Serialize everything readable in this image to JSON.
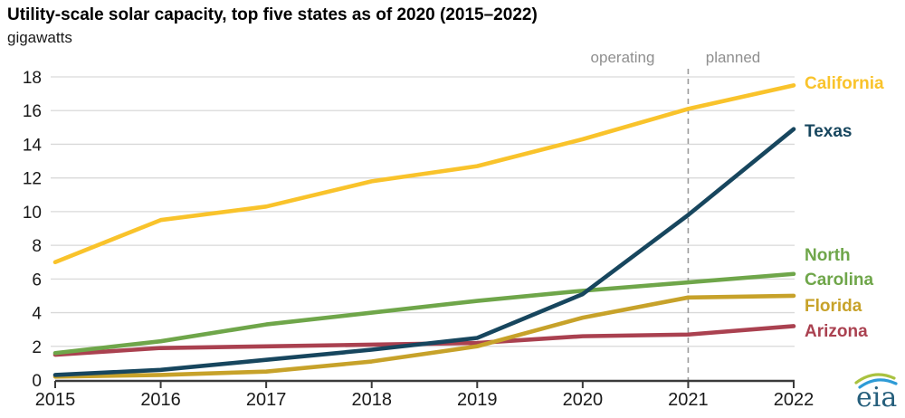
{
  "title": "Utility-scale solar capacity, top five states as of 2020 (2015–2022)",
  "subtitle": "gigawatts",
  "annotations": {
    "operating": "operating",
    "planned": "planned"
  },
  "logo_text": "eia",
  "colors": {
    "gridline": "#d9d9d9",
    "axis": "#3a3a3a",
    "tick_label": "#1a1a1a",
    "annotation_gray": "#8f8f8f",
    "divider_gray": "#9b9b9b",
    "logo_blue": "#265f7c",
    "logo_swoosh_green": "#a9c23f",
    "logo_swoosh_blue": "#2e9bd6"
  },
  "chart_data": {
    "type": "line",
    "title": "Utility-scale solar capacity, top five states as of 2020 (2015–2022)",
    "ylabel": "gigawatts",
    "x": [
      2015,
      2016,
      2017,
      2018,
      2019,
      2020,
      2021,
      2022
    ],
    "x_tick_labels": [
      "2015",
      "2016",
      "2017",
      "2018",
      "2019",
      "2020",
      "2021",
      "2022"
    ],
    "y_ticks": [
      0,
      2,
      4,
      6,
      8,
      10,
      12,
      14,
      16,
      18
    ],
    "ylim": [
      0,
      18
    ],
    "grid": true,
    "divider": {
      "x": 2021,
      "style": "dashed",
      "left_label": "operating",
      "right_label": "planned"
    },
    "legend_position": "right-of-lines",
    "series": [
      {
        "name": "Arizona",
        "label_lines": [
          "Arizona"
        ],
        "color": "#aa4150",
        "values": [
          1.5,
          1.9,
          2.0,
          2.1,
          2.2,
          2.6,
          2.7,
          3.2
        ]
      },
      {
        "name": "Florida",
        "label_lines": [
          "Florida"
        ],
        "color": "#c7a22a",
        "values": [
          0.2,
          0.3,
          0.5,
          1.1,
          2.0,
          3.7,
          4.9,
          5.0
        ]
      },
      {
        "name": "North Carolina",
        "label_lines": [
          "North",
          "Carolina"
        ],
        "color": "#6fa64a",
        "values": [
          1.6,
          2.3,
          3.3,
          4.0,
          4.7,
          5.3,
          5.8,
          6.3
        ]
      },
      {
        "name": "Texas",
        "label_lines": [
          "Texas"
        ],
        "color": "#17465e",
        "values": [
          0.3,
          0.6,
          1.2,
          1.8,
          2.5,
          5.1,
          9.8,
          14.9
        ]
      },
      {
        "name": "California",
        "label_lines": [
          "California"
        ],
        "color": "#f9c32b",
        "values": [
          7.0,
          9.5,
          10.3,
          11.8,
          12.7,
          14.3,
          16.1,
          17.5
        ]
      }
    ]
  }
}
